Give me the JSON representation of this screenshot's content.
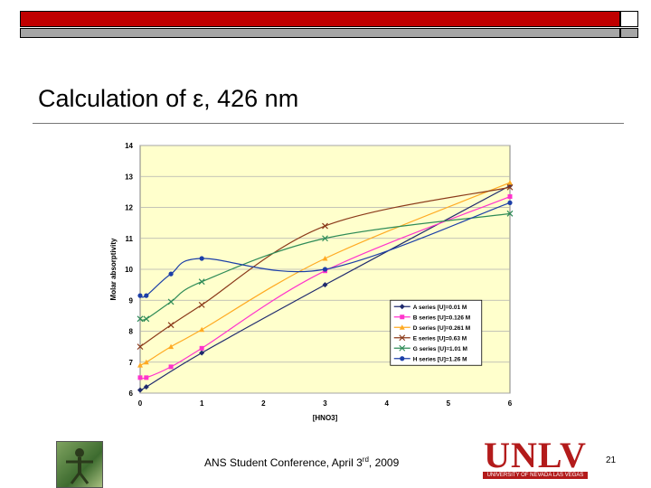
{
  "slide": {
    "title": "Calculation of ε, 426 nm",
    "footer_prefix": "ANS Student Conference, April 3",
    "footer_sup": "rd",
    "footer_suffix": ", 2009",
    "page_number": "21",
    "logo_text": "UNLV",
    "logo_subtext": "UNIVERSITY OF NEVADA LAS VEGAS",
    "colors": {
      "top_bar": "#c00000",
      "sub_bar": "#a6a6a6",
      "plot_bg": "#ffffcc"
    }
  },
  "chart_data": {
    "type": "line",
    "title": "",
    "xlabel": "[HNO3]",
    "ylabel": "Molar absorptivity",
    "xlim": [
      0,
      6
    ],
    "ylim": [
      6,
      14
    ],
    "xticks": [
      "0",
      "1",
      "2",
      "3",
      "4",
      "5",
      "6"
    ],
    "yticks": [
      "6",
      "7",
      "8",
      "9",
      "10",
      "11",
      "12",
      "13",
      "14"
    ],
    "grid": true,
    "legend_position": "bottom-right",
    "series": [
      {
        "name": "A series [U]=0.01 M",
        "color": "#1f2a6e",
        "marker": "diamond",
        "x": [
          0,
          0.1,
          1,
          3,
          6
        ],
        "y": [
          6.1,
          6.2,
          7.3,
          9.5,
          12.7
        ]
      },
      {
        "name": "B series [U]=0.126 M",
        "color": "#ff33cc",
        "marker": "square",
        "x": [
          0,
          0.1,
          0.5,
          1,
          3,
          6
        ],
        "y": [
          6.5,
          6.5,
          6.85,
          7.45,
          9.95,
          12.35
        ]
      },
      {
        "name": "D series [U]=0.261 M",
        "color": "#ffaa22",
        "marker": "triangle",
        "x": [
          0,
          0.1,
          0.5,
          1,
          3,
          6
        ],
        "y": [
          6.9,
          7.0,
          7.5,
          8.05,
          10.35,
          12.8
        ]
      },
      {
        "name": "E series [U]=0.63 M",
        "color": "#8b3a1a",
        "marker": "x",
        "x": [
          0,
          0.5,
          1,
          3,
          6
        ],
        "y": [
          7.5,
          8.2,
          8.85,
          11.4,
          12.65
        ]
      },
      {
        "name": "G series [U]=1.01 M",
        "color": "#2e8b57",
        "marker": "x",
        "x": [
          0,
          0.1,
          0.5,
          1,
          3,
          6
        ],
        "y": [
          8.4,
          8.4,
          8.95,
          9.6,
          11.0,
          11.8
        ]
      },
      {
        "name": "H series [U]=1.26 M",
        "color": "#1c3fa8",
        "marker": "circle",
        "x": [
          0,
          0.1,
          0.5,
          1,
          3,
          6
        ],
        "y": [
          9.15,
          9.15,
          9.85,
          10.35,
          10.0,
          12.15
        ]
      }
    ]
  }
}
